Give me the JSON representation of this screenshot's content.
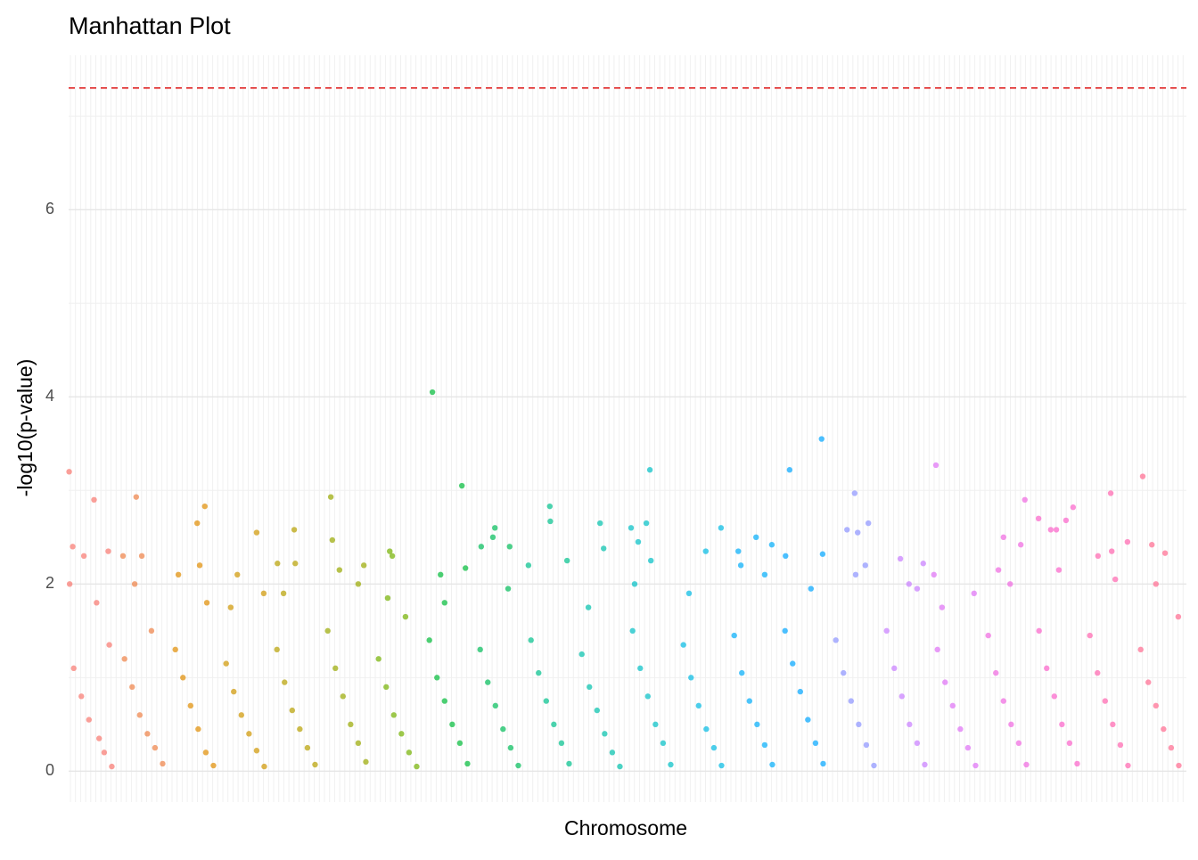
{
  "chart_data": {
    "type": "scatter",
    "title": "Manhattan Plot",
    "x_label": "Chromosome",
    "y_label": "-log10(p-value)",
    "xlim": [
      0,
      22
    ],
    "ylim": [
      -0.33,
      7.65
    ],
    "yticks": [
      0,
      2,
      4,
      6
    ],
    "minor_yticks": [
      1,
      3,
      5,
      7
    ],
    "grid": true,
    "hline": 7.3,
    "hline_color": "#dd1111",
    "series": [
      {
        "color": "#F8766D",
        "x": [
          0.01,
          0.08,
          0.5,
          0.3,
          0.78,
          0.02,
          0.55,
          0.8,
          0.1,
          0.25,
          0.4,
          0.6,
          0.7,
          0.85
        ],
        "values": [
          3.2,
          2.4,
          2.9,
          2.3,
          2.35,
          2.0,
          1.8,
          1.35,
          1.1,
          0.8,
          0.55,
          0.35,
          0.2,
          0.05
        ]
      },
      {
        "color": "#EE8044",
        "x": [
          1.33,
          1.44,
          1.07,
          1.3,
          1.63,
          1.1,
          1.25,
          1.4,
          1.55,
          1.7,
          1.85
        ],
        "values": [
          2.93,
          2.3,
          2.3,
          2.0,
          1.5,
          1.2,
          0.9,
          0.6,
          0.4,
          0.25,
          0.08
        ]
      },
      {
        "color": "#E08B00",
        "x": [
          2.68,
          2.53,
          2.58,
          2.16,
          2.72,
          2.1,
          2.25,
          2.4,
          2.55,
          2.7,
          2.85
        ],
        "values": [
          2.83,
          2.65,
          2.2,
          2.1,
          1.8,
          1.3,
          1.0,
          0.7,
          0.45,
          0.2,
          0.06
        ]
      },
      {
        "color": "#CE9500",
        "x": [
          3.7,
          3.32,
          3.84,
          3.19,
          3.1,
          3.25,
          3.4,
          3.55,
          3.7,
          3.85
        ],
        "values": [
          2.55,
          2.1,
          1.9,
          1.75,
          1.15,
          0.85,
          0.6,
          0.4,
          0.22,
          0.05
        ]
      },
      {
        "color": "#B69F00",
        "x": [
          4.44,
          4.11,
          4.46,
          4.23,
          4.1,
          4.25,
          4.4,
          4.55,
          4.7,
          4.85
        ],
        "values": [
          2.58,
          2.22,
          2.22,
          1.9,
          1.3,
          0.95,
          0.65,
          0.45,
          0.25,
          0.07
        ]
      },
      {
        "color": "#99A800",
        "x": [
          5.16,
          5.19,
          5.81,
          5.33,
          5.7,
          5.1,
          5.25,
          5.4,
          5.55,
          5.7,
          5.85
        ],
        "values": [
          2.93,
          2.47,
          2.2,
          2.15,
          2.0,
          1.5,
          1.1,
          0.8,
          0.5,
          0.3,
          0.1
        ]
      },
      {
        "color": "#73B000",
        "x": [
          6.32,
          6.37,
          6.63,
          6.28,
          6.1,
          6.25,
          6.4,
          6.55,
          6.7,
          6.85
        ],
        "values": [
          2.35,
          2.3,
          1.65,
          1.85,
          1.2,
          0.9,
          0.6,
          0.4,
          0.2,
          0.05
        ]
      },
      {
        "color": "#00BA38",
        "x": [
          7.16,
          7.74,
          7.81,
          7.32,
          7.4,
          7.1,
          7.25,
          7.4,
          7.55,
          7.7,
          7.85
        ],
        "values": [
          4.05,
          3.05,
          2.17,
          2.1,
          1.8,
          1.4,
          1.0,
          0.75,
          0.5,
          0.3,
          0.08
        ]
      },
      {
        "color": "#00BC59",
        "x": [
          8.39,
          8.35,
          8.12,
          8.68,
          8.65,
          8.1,
          8.25,
          8.4,
          8.55,
          8.7,
          8.85
        ],
        "values": [
          2.6,
          2.5,
          2.4,
          2.4,
          1.95,
          1.3,
          0.95,
          0.7,
          0.45,
          0.25,
          0.06
        ]
      },
      {
        "color": "#00C08B",
        "x": [
          9.47,
          9.48,
          9.81,
          9.05,
          9.1,
          9.25,
          9.4,
          9.55,
          9.7,
          9.85
        ],
        "values": [
          2.83,
          2.67,
          2.25,
          2.2,
          1.4,
          1.05,
          0.75,
          0.5,
          0.3,
          0.08
        ]
      },
      {
        "color": "#00C0AB",
        "x": [
          10.46,
          10.53,
          10.23,
          10.1,
          10.25,
          10.4,
          10.55,
          10.7,
          10.85
        ],
        "values": [
          2.65,
          2.38,
          1.75,
          1.25,
          0.9,
          0.65,
          0.4,
          0.2,
          0.05
        ]
      },
      {
        "color": "#00BFC4",
        "x": [
          11.44,
          11.37,
          11.07,
          11.21,
          11.46,
          11.14,
          11.1,
          11.25,
          11.4,
          11.55,
          11.7,
          11.85
        ],
        "values": [
          3.22,
          2.65,
          2.6,
          2.45,
          2.25,
          2.0,
          1.5,
          1.1,
          0.8,
          0.5,
          0.3,
          0.07
        ]
      },
      {
        "color": "#00B9E3",
        "x": [
          12.84,
          12.54,
          12.21,
          12.1,
          12.25,
          12.4,
          12.55,
          12.7,
          12.85
        ],
        "values": [
          2.6,
          2.35,
          1.9,
          1.35,
          1.0,
          0.7,
          0.45,
          0.25,
          0.06
        ]
      },
      {
        "color": "#00ADFA",
        "x": [
          13.53,
          13.84,
          13.18,
          13.23,
          13.7,
          13.1,
          13.25,
          13.4,
          13.55,
          13.7,
          13.85
        ],
        "values": [
          2.5,
          2.42,
          2.35,
          2.2,
          2.1,
          1.45,
          1.05,
          0.75,
          0.5,
          0.28,
          0.07
        ]
      },
      {
        "color": "#00A5FF",
        "x": [
          14.82,
          14.19,
          14.11,
          14.84,
          14.61,
          14.1,
          14.25,
          14.4,
          14.55,
          14.7,
          14.85
        ],
        "values": [
          3.55,
          3.22,
          2.3,
          2.32,
          1.95,
          1.5,
          1.15,
          0.85,
          0.55,
          0.3,
          0.08
        ]
      },
      {
        "color": "#8B93FF",
        "x": [
          15.47,
          15.74,
          15.32,
          15.53,
          15.68,
          15.49,
          15.1,
          15.25,
          15.4,
          15.55,
          15.7,
          15.85
        ],
        "values": [
          2.97,
          2.65,
          2.58,
          2.55,
          2.2,
          2.1,
          1.4,
          1.05,
          0.75,
          0.5,
          0.28,
          0.06
        ]
      },
      {
        "color": "#C77CFF",
        "x": [
          16.37,
          16.82,
          16.54,
          16.7,
          16.1,
          16.25,
          16.4,
          16.55,
          16.7,
          16.85
        ],
        "values": [
          2.27,
          2.22,
          2.0,
          1.95,
          1.5,
          1.1,
          0.8,
          0.5,
          0.3,
          0.07
        ]
      },
      {
        "color": "#DE6FF5",
        "x": [
          17.07,
          17.03,
          17.82,
          17.19,
          17.1,
          17.25,
          17.4,
          17.55,
          17.7,
          17.85
        ],
        "values": [
          3.27,
          2.1,
          1.9,
          1.75,
          1.3,
          0.95,
          0.7,
          0.45,
          0.25,
          0.06
        ]
      },
      {
        "color": "#F066E0",
        "x": [
          18.82,
          18.4,
          18.74,
          18.3,
          18.53,
          18.1,
          18.25,
          18.4,
          18.55,
          18.7,
          18.85
        ],
        "values": [
          2.9,
          2.5,
          2.42,
          2.15,
          2.0,
          1.45,
          1.05,
          0.75,
          0.5,
          0.3,
          0.07
        ]
      },
      {
        "color": "#FB61C9",
        "x": [
          19.77,
          19.09,
          19.63,
          19.33,
          19.44,
          19.49,
          19.1,
          19.25,
          19.4,
          19.55,
          19.7,
          19.85
        ],
        "values": [
          2.82,
          2.7,
          2.68,
          2.58,
          2.58,
          2.15,
          1.5,
          1.1,
          0.8,
          0.5,
          0.3,
          0.08
        ]
      },
      {
        "color": "#FF64AE",
        "x": [
          20.51,
          20.84,
          20.53,
          20.26,
          20.6,
          20.1,
          20.25,
          20.4,
          20.55,
          20.7,
          20.85
        ],
        "values": [
          2.97,
          2.45,
          2.35,
          2.3,
          2.05,
          1.45,
          1.05,
          0.75,
          0.5,
          0.28,
          0.06
        ]
      },
      {
        "color": "#FF6A8E",
        "x": [
          21.14,
          21.32,
          21.58,
          21.4,
          21.84,
          21.1,
          21.25,
          21.4,
          21.55,
          21.7,
          21.85
        ],
        "values": [
          3.15,
          2.42,
          2.33,
          2.0,
          1.65,
          1.3,
          0.95,
          0.7,
          0.45,
          0.25,
          0.06
        ]
      }
    ]
  }
}
